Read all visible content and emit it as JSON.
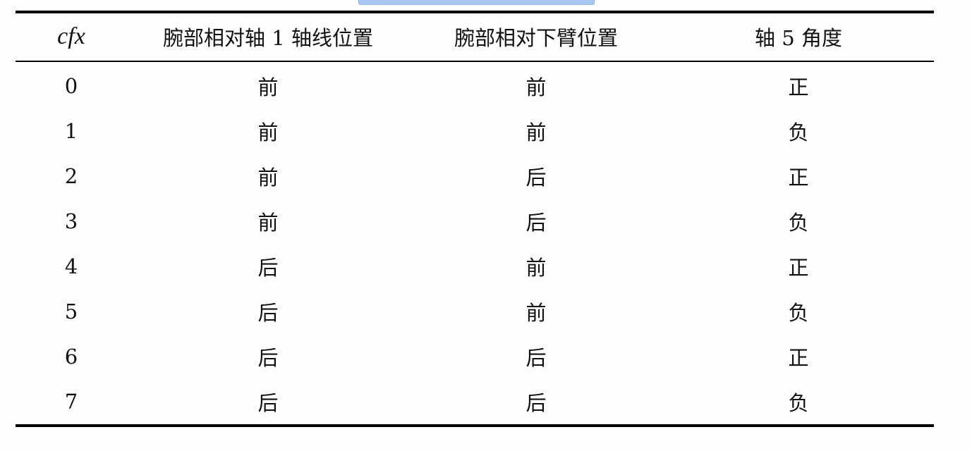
{
  "highlight_color": "#a9c8ef",
  "table": {
    "headers": [
      "cfx",
      "腕部相对轴 1 轴线位置",
      "腕部相对下臂位置",
      "轴 5 角度"
    ],
    "rows": [
      [
        "0",
        "前",
        "前",
        "正"
      ],
      [
        "1",
        "前",
        "前",
        "负"
      ],
      [
        "2",
        "前",
        "后",
        "正"
      ],
      [
        "3",
        "前",
        "后",
        "负"
      ],
      [
        "4",
        "后",
        "前",
        "正"
      ],
      [
        "5",
        "后",
        "前",
        "负"
      ],
      [
        "6",
        "后",
        "后",
        "正"
      ],
      [
        "7",
        "后",
        "后",
        "负"
      ]
    ]
  }
}
